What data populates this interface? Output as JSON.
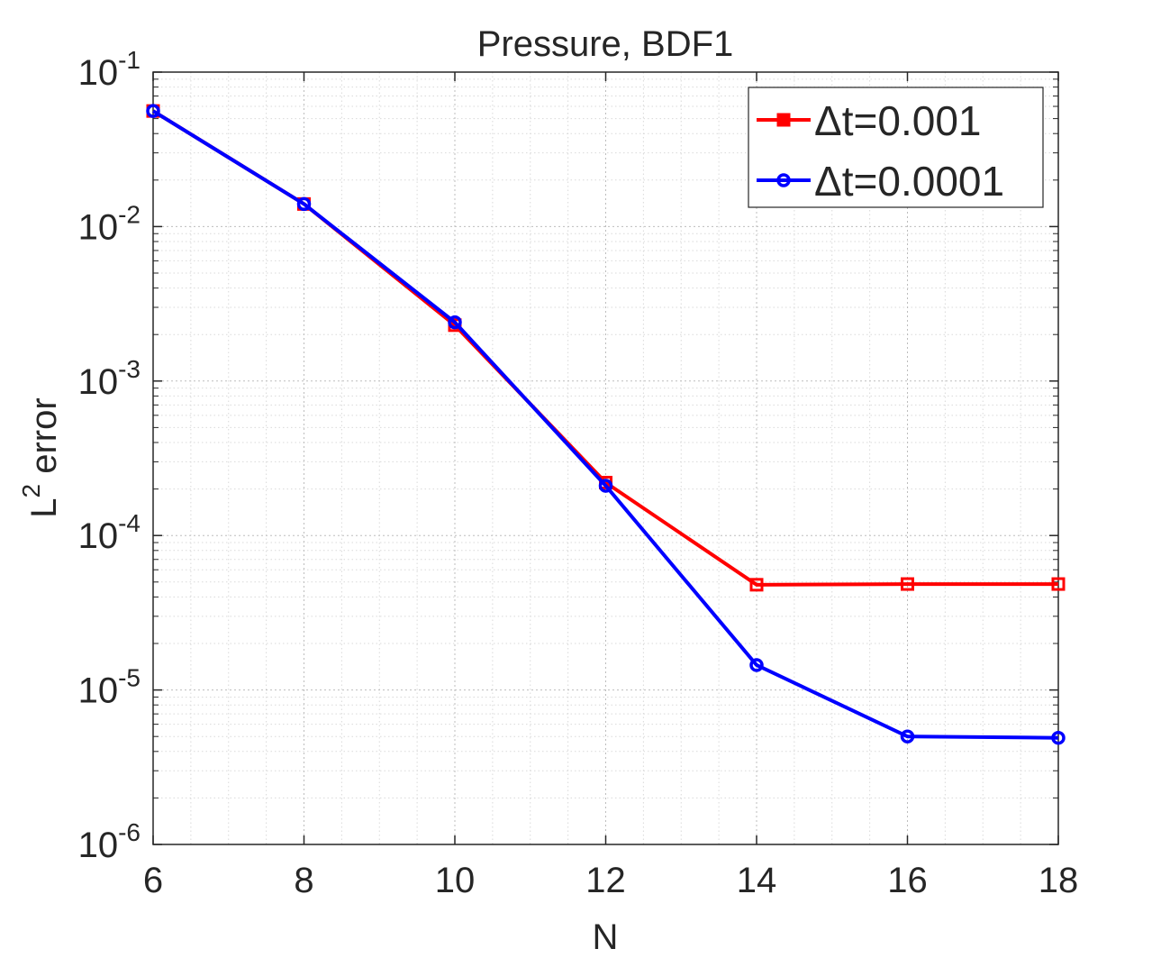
{
  "chart_data": {
    "type": "line",
    "title": "Pressure, BDF1",
    "xlabel": "N",
    "ylabel_base": "L",
    "ylabel_sup": "2",
    "ylabel_rest": " error",
    "xlim": [
      6,
      18
    ],
    "ylim": [
      1e-06,
      0.1
    ],
    "yscale": "log",
    "grid": true,
    "minor_grid": true,
    "legend_position": "top-right",
    "x_ticks": [
      6,
      8,
      10,
      12,
      14,
      16,
      18
    ],
    "x_tick_labels": [
      "6",
      "8",
      "10",
      "12",
      "14",
      "16",
      "18"
    ],
    "y_ticks": [
      {
        "value": 1e-06,
        "base": "10",
        "exp": "-6"
      },
      {
        "value": 1e-05,
        "base": "10",
        "exp": "-5"
      },
      {
        "value": 0.0001,
        "base": "10",
        "exp": "-4"
      },
      {
        "value": 0.001,
        "base": "10",
        "exp": "-3"
      },
      {
        "value": 0.01,
        "base": "10",
        "exp": "-2"
      },
      {
        "value": 0.1,
        "base": "10",
        "exp": "-1"
      }
    ],
    "x": [
      6,
      8,
      10,
      12,
      14,
      16,
      18
    ],
    "series": [
      {
        "name": "Δt=0.001",
        "color": "#ff0000",
        "marker": "square",
        "values": [
          0.056,
          0.014,
          0.0023,
          0.00022,
          4.8e-05,
          4.85e-05,
          4.85e-05
        ]
      },
      {
        "name": "Δt=0.0001",
        "color": "#0000ff",
        "marker": "circle",
        "values": [
          0.056,
          0.014,
          0.0024,
          0.00021,
          1.45e-05,
          5e-06,
          4.9e-06
        ]
      }
    ]
  }
}
